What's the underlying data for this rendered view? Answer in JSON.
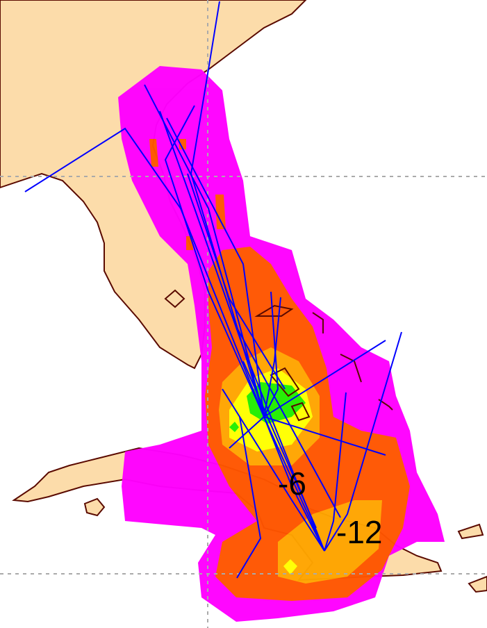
{
  "map": {
    "labels": [
      "-6",
      "-12"
    ],
    "colors": {
      "ocean": "#ffffff",
      "land": "#fcdcaa",
      "coastline": "#5a0a00",
      "contour_level_1": "#ff00ff",
      "contour_level_2": "#ff5500",
      "contour_level_3": "#ffa500",
      "contour_level_4": "#ffff00",
      "contour_level_5": "#22ee00",
      "tracks": "#0000ff",
      "gridlines": "#aaaaaa"
    },
    "gridlines": "dashed"
  }
}
